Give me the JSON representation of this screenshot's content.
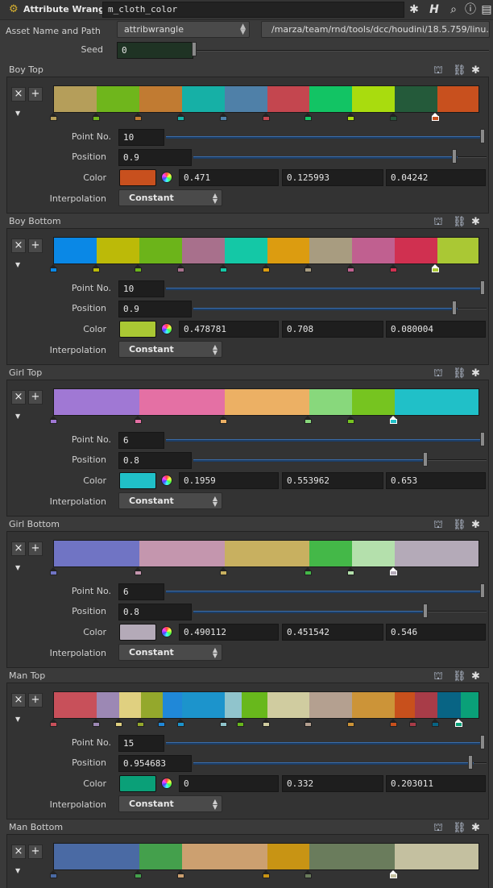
{
  "topbar": {
    "node_type": "Attribute Wrangle",
    "node_name": "m_cloth_color",
    "icons": [
      "gear-icon",
      "help-icon",
      "search-icon",
      "info-icon",
      "parameters-icon"
    ]
  },
  "asset": {
    "label": "Asset Name and Path",
    "name": "attribwrangle",
    "path": "/marza/team/rnd/tools/dcc/houdini/18.5.759/linu..."
  },
  "seed": {
    "label": "Seed",
    "value": "0",
    "fraction": 0.0
  },
  "labels": {
    "point_no": "Point No.",
    "position": "Position",
    "color": "Color",
    "interpolation": "Interpolation",
    "remove": "×",
    "add": "+"
  },
  "ramps": [
    {
      "title": "Boy Top",
      "stops": [
        {
          "pos": 0.0,
          "color": "#b59e5a"
        },
        {
          "pos": 0.1,
          "color": "#6fb61c"
        },
        {
          "pos": 0.2,
          "color": "#c17b32"
        },
        {
          "pos": 0.3,
          "color": "#16b0a6"
        },
        {
          "pos": 0.4,
          "color": "#4f80a8"
        },
        {
          "pos": 0.5,
          "color": "#c4464f"
        },
        {
          "pos": 0.6,
          "color": "#12c464"
        },
        {
          "pos": 0.7,
          "color": "#a9dc0e"
        },
        {
          "pos": 0.8,
          "color": "#245a3a"
        },
        {
          "pos": 0.9,
          "color": "#c8501e"
        }
      ],
      "selected": 9,
      "point_no": "10",
      "position": "0.9",
      "position_fraction": 0.9,
      "point_fraction": 1.0,
      "color_hex": "#c8501e",
      "r": "0.471",
      "g": "0.125993",
      "b": "0.04242",
      "interpolation": "Constant"
    },
    {
      "title": "Boy Bottom",
      "stops": [
        {
          "pos": 0.0,
          "color": "#0a88e6"
        },
        {
          "pos": 0.1,
          "color": "#bcba08"
        },
        {
          "pos": 0.2,
          "color": "#6cb41a"
        },
        {
          "pos": 0.3,
          "color": "#a8708c"
        },
        {
          "pos": 0.4,
          "color": "#14c8a6"
        },
        {
          "pos": 0.5,
          "color": "#dc9c10"
        },
        {
          "pos": 0.6,
          "color": "#a89c80"
        },
        {
          "pos": 0.7,
          "color": "#c06090"
        },
        {
          "pos": 0.8,
          "color": "#d03050"
        },
        {
          "pos": 0.9,
          "color": "#aac834"
        }
      ],
      "selected": 9,
      "point_no": "10",
      "position": "0.9",
      "position_fraction": 0.9,
      "point_fraction": 1.0,
      "color_hex": "#aac834",
      "r": "0.478781",
      "g": "0.708",
      "b": "0.080004",
      "interpolation": "Constant"
    },
    {
      "title": "Girl Top",
      "stops": [
        {
          "pos": 0.0,
          "color": "#a078d4"
        },
        {
          "pos": 0.2,
          "color": "#e470a4"
        },
        {
          "pos": 0.4,
          "color": "#ecb064"
        },
        {
          "pos": 0.6,
          "color": "#88d87c"
        },
        {
          "pos": 0.7,
          "color": "#76c420"
        },
        {
          "pos": 0.8,
          "color": "#20c0c8"
        }
      ],
      "selected": 5,
      "point_no": "6",
      "position": "0.8",
      "position_fraction": 0.8,
      "point_fraction": 1.0,
      "color_hex": "#20c0c8",
      "r": "0.1959",
      "g": "0.553962",
      "b": "0.653",
      "interpolation": "Constant"
    },
    {
      "title": "Girl Bottom",
      "stops": [
        {
          "pos": 0.0,
          "color": "#7074c4"
        },
        {
          "pos": 0.2,
          "color": "#c496ae"
        },
        {
          "pos": 0.4,
          "color": "#c8b060"
        },
        {
          "pos": 0.6,
          "color": "#44b848"
        },
        {
          "pos": 0.7,
          "color": "#b4e0ac"
        },
        {
          "pos": 0.8,
          "color": "#b4aab8"
        }
      ],
      "selected": 5,
      "point_no": "6",
      "position": "0.8",
      "position_fraction": 0.8,
      "point_fraction": 1.0,
      "color_hex": "#b4aab8",
      "r": "0.490112",
      "g": "0.451542",
      "b": "0.546",
      "interpolation": "Constant"
    },
    {
      "title": "Man Top",
      "stops": [
        {
          "pos": 0.0,
          "color": "#c8505a"
        },
        {
          "pos": 0.1,
          "color": "#9c88b4"
        },
        {
          "pos": 0.154,
          "color": "#e0d080"
        },
        {
          "pos": 0.205,
          "color": "#94a82c"
        },
        {
          "pos": 0.255,
          "color": "#2088d8"
        },
        {
          "pos": 0.3,
          "color": "#1c94cc"
        },
        {
          "pos": 0.4,
          "color": "#90c4cc"
        },
        {
          "pos": 0.44,
          "color": "#68b81c"
        },
        {
          "pos": 0.5,
          "color": "#d0cca0"
        },
        {
          "pos": 0.6,
          "color": "#b4a090"
        },
        {
          "pos": 0.7,
          "color": "#cc9438"
        },
        {
          "pos": 0.8,
          "color": "#c8501c"
        },
        {
          "pos": 0.847,
          "color": "#a83c48"
        },
        {
          "pos": 0.9,
          "color": "#086484"
        },
        {
          "pos": 0.955,
          "color": "#0aa078"
        }
      ],
      "selected": 14,
      "point_no": "15",
      "position": "0.954683",
      "position_fraction": 0.955,
      "point_fraction": 1.0,
      "color_hex": "#0aa078",
      "r": "0",
      "g": "0.332",
      "b": "0.203011",
      "interpolation": "Constant"
    },
    {
      "title": "Man Bottom",
      "stops": [
        {
          "pos": 0.0,
          "color": "#4a6aa4"
        },
        {
          "pos": 0.2,
          "color": "#44a04c"
        },
        {
          "pos": 0.3,
          "color": "#cca070"
        },
        {
          "pos": 0.5,
          "color": "#c89414"
        },
        {
          "pos": 0.6,
          "color": "#6a7c5c"
        },
        {
          "pos": 0.8,
          "color": "#c4c0a0"
        }
      ],
      "selected": 5
    }
  ]
}
